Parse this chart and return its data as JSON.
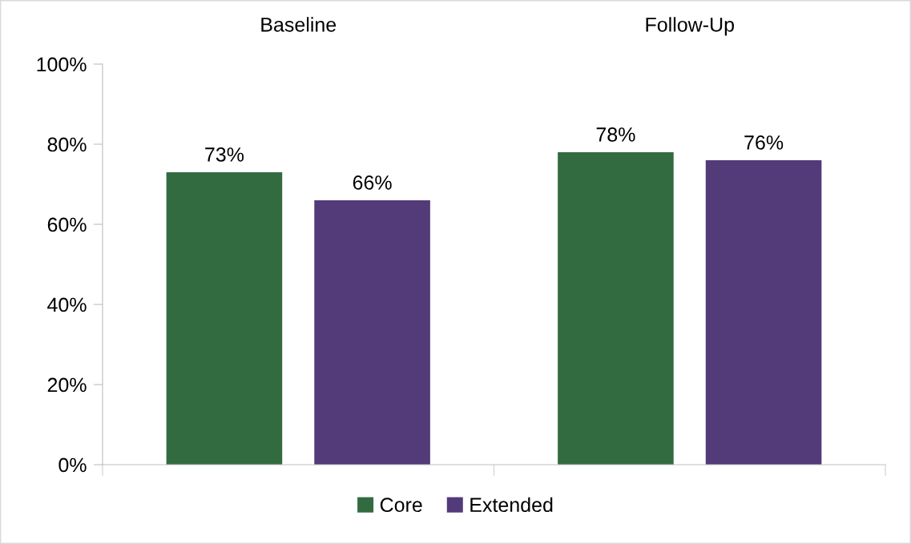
{
  "chart_data": {
    "type": "bar",
    "categories": [
      "Baseline",
      "Follow-Up"
    ],
    "series": [
      {
        "name": "Core",
        "color": "#336b41",
        "values": [
          73,
          78
        ],
        "value_labels": [
          "73%",
          "78%"
        ]
      },
      {
        "name": "Extended",
        "color": "#533a79",
        "values": [
          66,
          76
        ],
        "value_labels": [
          "66%",
          "76%"
        ]
      }
    ],
    "ylim": [
      0,
      100
    ],
    "yticks": [
      {
        "value": 0,
        "label": "0%"
      },
      {
        "value": 20,
        "label": "20%"
      },
      {
        "value": 40,
        "label": "40%"
      },
      {
        "value": 60,
        "label": "60%"
      },
      {
        "value": 80,
        "label": "80%"
      },
      {
        "value": 100,
        "label": "100%"
      }
    ],
    "grid": false,
    "legend": "bottom"
  }
}
